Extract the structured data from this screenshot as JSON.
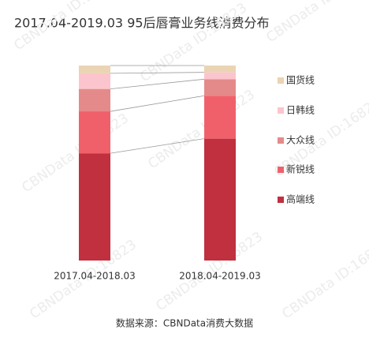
{
  "chart_data": {
    "type": "stacked-bar",
    "title": "2017.04-2019.03 95后唇膏业务线消费分布",
    "categories": [
      "2017.04-2018.03",
      "2018.04-2019.03"
    ],
    "series": [
      {
        "name": "高端线",
        "color": "#c0303f",
        "values": [
          55,
          62.5
        ]
      },
      {
        "name": "新锐线",
        "color": "#f0606b",
        "values": [
          21.5,
          22
        ]
      },
      {
        "name": "大众线",
        "color": "#e58a8a",
        "values": [
          11.5,
          8.5
        ]
      },
      {
        "name": "日韩线",
        "color": "#fcc5cd",
        "values": [
          8,
          3.5
        ]
      },
      {
        "name": "国货线",
        "color": "#ead4b3",
        "values": [
          4,
          3.5
        ]
      }
    ],
    "ylim": [
      0,
      100
    ],
    "source": "数据来源：CBNData消费大数据",
    "watermark": "CBNData ID:16823"
  }
}
